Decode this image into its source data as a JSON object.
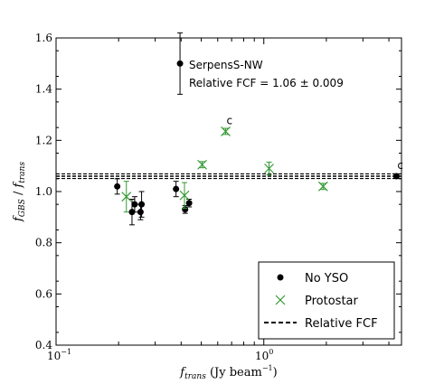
{
  "chart_data": {
    "type": "scatter",
    "title": "",
    "xlabel": "f_trans (Jy beam^-1)",
    "ylabel": "f_GBS / f_trans",
    "x_scale": "log",
    "xlim": [
      0.1,
      4.6
    ],
    "ylim": [
      0.4,
      1.6
    ],
    "y_ticks": [
      "0.4",
      "0.6",
      "0.8",
      "1.0",
      "1.2",
      "1.4",
      "1.6"
    ],
    "grid": false,
    "legend_position": "bottom-right",
    "legend": {
      "no_yso": "No YSO",
      "protostar": "Protostar",
      "fcf": "Relative FCF"
    },
    "annotation": {
      "region": "SerpensS-NW",
      "fcf_text": "Relative FCF = 1.06 ± 0.009"
    },
    "fcf_line": {
      "value": 1.06,
      "err": 0.009
    },
    "series": [
      {
        "name": "No YSO",
        "color": "#000000",
        "marker": "circle",
        "points": [
          {
            "x": 0.197,
            "y": 1.02,
            "err": 0.03
          },
          {
            "x": 0.232,
            "y": 0.92,
            "err": 0.05
          },
          {
            "x": 0.239,
            "y": 0.95,
            "err": 0.03
          },
          {
            "x": 0.255,
            "y": 0.92,
            "err": 0.03
          },
          {
            "x": 0.258,
            "y": 0.95,
            "err": 0.05
          },
          {
            "x": 0.378,
            "y": 1.01,
            "err": 0.03
          },
          {
            "x": 0.395,
            "y": 1.5,
            "err": 0.12
          },
          {
            "x": 0.418,
            "y": 0.93,
            "err": 0.015
          },
          {
            "x": 0.437,
            "y": 0.955,
            "err": 0.015
          },
          {
            "x": 4.35,
            "y": 1.06,
            "err": 0.008,
            "label": "c"
          }
        ]
      },
      {
        "name": "Protostar",
        "color": "#339933",
        "marker": "x",
        "points": [
          {
            "x": 0.218,
            "y": 0.98,
            "err": 0.06
          },
          {
            "x": 0.415,
            "y": 0.985,
            "err": 0.05
          },
          {
            "x": 0.505,
            "y": 1.105,
            "err": 0.012
          },
          {
            "x": 0.655,
            "y": 1.235,
            "err": 0.012,
            "label": "c"
          },
          {
            "x": 1.06,
            "y": 1.09,
            "err": 0.025
          },
          {
            "x": 1.93,
            "y": 1.02,
            "err": 0.012
          }
        ]
      }
    ]
  }
}
